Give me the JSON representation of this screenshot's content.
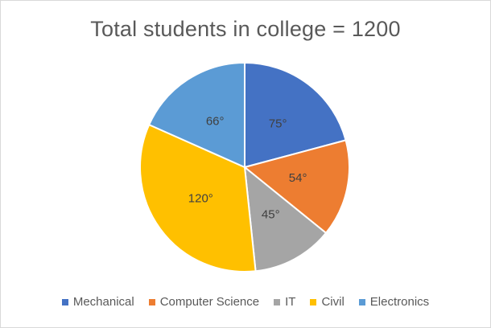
{
  "chart_data": {
    "type": "pie",
    "title": "Total students in college = 1200",
    "slices": [
      {
        "name": "Mechanical",
        "value": 75,
        "label": "75°",
        "color": "#4472C4"
      },
      {
        "name": "Computer Science",
        "value": 54,
        "label": "54°",
        "color": "#ED7D31"
      },
      {
        "name": "IT",
        "value": 45,
        "label": "45°",
        "color": "#A5A5A5"
      },
      {
        "name": "Civil",
        "value": 120,
        "label": "120°",
        "color": "#FFC000"
      },
      {
        "name": "Electronics",
        "value": 66,
        "label": "66°",
        "color": "#5B9BD5"
      }
    ],
    "legend_position": "bottom"
  }
}
